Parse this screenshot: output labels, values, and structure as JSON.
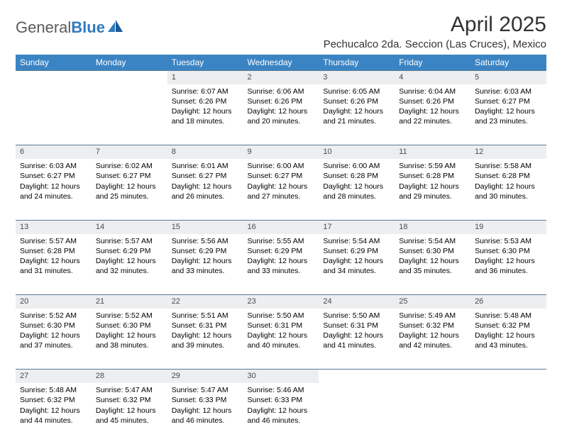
{
  "logo": {
    "general": "General",
    "blue": "Blue"
  },
  "title": "April 2025",
  "location": "Pechucalco 2da. Seccion (Las Cruces), Mexico",
  "colors": {
    "header_bg": "#3b84c4",
    "header_text": "#ffffff",
    "daynum_bg": "#eceef0",
    "daynum_border": "#5a7a95",
    "body_text": "#000000",
    "logo_gray": "#5a5a5a",
    "logo_blue": "#2f7bbf"
  },
  "weekdays": [
    "Sunday",
    "Monday",
    "Tuesday",
    "Wednesday",
    "Thursday",
    "Friday",
    "Saturday"
  ],
  "weeks": [
    [
      null,
      null,
      {
        "n": "1",
        "sr": "Sunrise: 6:07 AM",
        "ss": "Sunset: 6:26 PM",
        "dl": "Daylight: 12 hours and 18 minutes."
      },
      {
        "n": "2",
        "sr": "Sunrise: 6:06 AM",
        "ss": "Sunset: 6:26 PM",
        "dl": "Daylight: 12 hours and 20 minutes."
      },
      {
        "n": "3",
        "sr": "Sunrise: 6:05 AM",
        "ss": "Sunset: 6:26 PM",
        "dl": "Daylight: 12 hours and 21 minutes."
      },
      {
        "n": "4",
        "sr": "Sunrise: 6:04 AM",
        "ss": "Sunset: 6:26 PM",
        "dl": "Daylight: 12 hours and 22 minutes."
      },
      {
        "n": "5",
        "sr": "Sunrise: 6:03 AM",
        "ss": "Sunset: 6:27 PM",
        "dl": "Daylight: 12 hours and 23 minutes."
      }
    ],
    [
      {
        "n": "6",
        "sr": "Sunrise: 6:03 AM",
        "ss": "Sunset: 6:27 PM",
        "dl": "Daylight: 12 hours and 24 minutes."
      },
      {
        "n": "7",
        "sr": "Sunrise: 6:02 AM",
        "ss": "Sunset: 6:27 PM",
        "dl": "Daylight: 12 hours and 25 minutes."
      },
      {
        "n": "8",
        "sr": "Sunrise: 6:01 AM",
        "ss": "Sunset: 6:27 PM",
        "dl": "Daylight: 12 hours and 26 minutes."
      },
      {
        "n": "9",
        "sr": "Sunrise: 6:00 AM",
        "ss": "Sunset: 6:27 PM",
        "dl": "Daylight: 12 hours and 27 minutes."
      },
      {
        "n": "10",
        "sr": "Sunrise: 6:00 AM",
        "ss": "Sunset: 6:28 PM",
        "dl": "Daylight: 12 hours and 28 minutes."
      },
      {
        "n": "11",
        "sr": "Sunrise: 5:59 AM",
        "ss": "Sunset: 6:28 PM",
        "dl": "Daylight: 12 hours and 29 minutes."
      },
      {
        "n": "12",
        "sr": "Sunrise: 5:58 AM",
        "ss": "Sunset: 6:28 PM",
        "dl": "Daylight: 12 hours and 30 minutes."
      }
    ],
    [
      {
        "n": "13",
        "sr": "Sunrise: 5:57 AM",
        "ss": "Sunset: 6:28 PM",
        "dl": "Daylight: 12 hours and 31 minutes."
      },
      {
        "n": "14",
        "sr": "Sunrise: 5:57 AM",
        "ss": "Sunset: 6:29 PM",
        "dl": "Daylight: 12 hours and 32 minutes."
      },
      {
        "n": "15",
        "sr": "Sunrise: 5:56 AM",
        "ss": "Sunset: 6:29 PM",
        "dl": "Daylight: 12 hours and 33 minutes."
      },
      {
        "n": "16",
        "sr": "Sunrise: 5:55 AM",
        "ss": "Sunset: 6:29 PM",
        "dl": "Daylight: 12 hours and 33 minutes."
      },
      {
        "n": "17",
        "sr": "Sunrise: 5:54 AM",
        "ss": "Sunset: 6:29 PM",
        "dl": "Daylight: 12 hours and 34 minutes."
      },
      {
        "n": "18",
        "sr": "Sunrise: 5:54 AM",
        "ss": "Sunset: 6:30 PM",
        "dl": "Daylight: 12 hours and 35 minutes."
      },
      {
        "n": "19",
        "sr": "Sunrise: 5:53 AM",
        "ss": "Sunset: 6:30 PM",
        "dl": "Daylight: 12 hours and 36 minutes."
      }
    ],
    [
      {
        "n": "20",
        "sr": "Sunrise: 5:52 AM",
        "ss": "Sunset: 6:30 PM",
        "dl": "Daylight: 12 hours and 37 minutes."
      },
      {
        "n": "21",
        "sr": "Sunrise: 5:52 AM",
        "ss": "Sunset: 6:30 PM",
        "dl": "Daylight: 12 hours and 38 minutes."
      },
      {
        "n": "22",
        "sr": "Sunrise: 5:51 AM",
        "ss": "Sunset: 6:31 PM",
        "dl": "Daylight: 12 hours and 39 minutes."
      },
      {
        "n": "23",
        "sr": "Sunrise: 5:50 AM",
        "ss": "Sunset: 6:31 PM",
        "dl": "Daylight: 12 hours and 40 minutes."
      },
      {
        "n": "24",
        "sr": "Sunrise: 5:50 AM",
        "ss": "Sunset: 6:31 PM",
        "dl": "Daylight: 12 hours and 41 minutes."
      },
      {
        "n": "25",
        "sr": "Sunrise: 5:49 AM",
        "ss": "Sunset: 6:32 PM",
        "dl": "Daylight: 12 hours and 42 minutes."
      },
      {
        "n": "26",
        "sr": "Sunrise: 5:48 AM",
        "ss": "Sunset: 6:32 PM",
        "dl": "Daylight: 12 hours and 43 minutes."
      }
    ],
    [
      {
        "n": "27",
        "sr": "Sunrise: 5:48 AM",
        "ss": "Sunset: 6:32 PM",
        "dl": "Daylight: 12 hours and 44 minutes."
      },
      {
        "n": "28",
        "sr": "Sunrise: 5:47 AM",
        "ss": "Sunset: 6:32 PM",
        "dl": "Daylight: 12 hours and 45 minutes."
      },
      {
        "n": "29",
        "sr": "Sunrise: 5:47 AM",
        "ss": "Sunset: 6:33 PM",
        "dl": "Daylight: 12 hours and 46 minutes."
      },
      {
        "n": "30",
        "sr": "Sunrise: 5:46 AM",
        "ss": "Sunset: 6:33 PM",
        "dl": "Daylight: 12 hours and 46 minutes."
      },
      null,
      null,
      null
    ]
  ]
}
